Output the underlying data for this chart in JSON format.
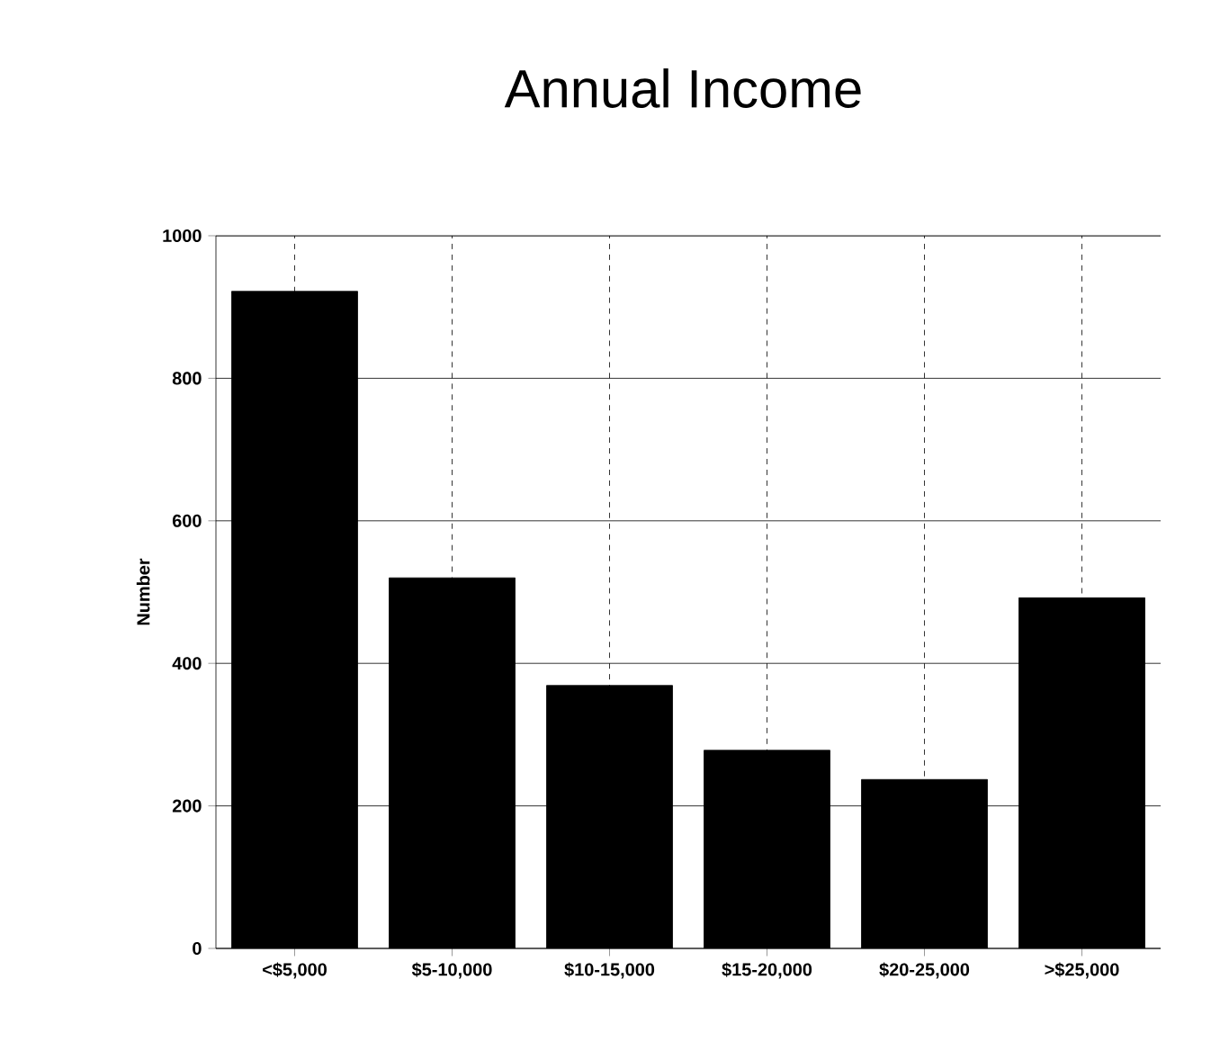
{
  "chart_data": {
    "type": "bar",
    "title": "Annual Income",
    "ylabel": "Number",
    "categories": [
      "<$5,000",
      "$5-10,000",
      "$10-15,000",
      "$15-20,000",
      "$20-25,000",
      ">$25,000"
    ],
    "values": [
      922,
      520,
      369,
      278,
      237,
      492
    ],
    "color": "#000000",
    "ylim": [
      0,
      1000
    ],
    "yticks": [
      0,
      200,
      400,
      600,
      800,
      1000
    ],
    "grid": true
  }
}
